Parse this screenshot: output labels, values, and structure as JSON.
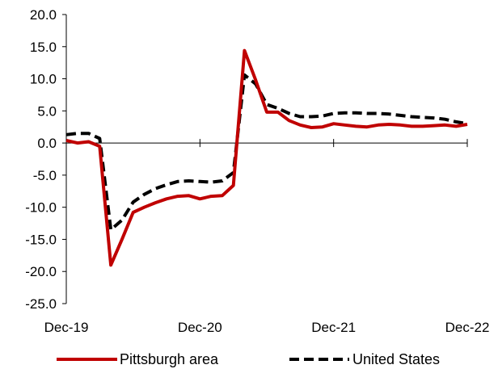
{
  "chart_data": {
    "type": "line",
    "x": [
      "Dec-19",
      "Jan-20",
      "Feb-20",
      "Mar-20",
      "Apr-20",
      "May-20",
      "Jun-20",
      "Jul-20",
      "Aug-20",
      "Sep-20",
      "Oct-20",
      "Nov-20",
      "Dec-20",
      "Jan-21",
      "Feb-21",
      "Mar-21",
      "Apr-21",
      "May-21",
      "Jun-21",
      "Jul-21",
      "Aug-21",
      "Sep-21",
      "Oct-21",
      "Nov-21",
      "Dec-21",
      "Jan-22",
      "Feb-22",
      "Mar-22",
      "Apr-22",
      "May-22",
      "Jun-22",
      "Jul-22",
      "Aug-22",
      "Sep-22",
      "Oct-22",
      "Nov-22",
      "Dec-22"
    ],
    "x_tick_labels": [
      "Dec-19",
      "Dec-20",
      "Dec-21",
      "Dec-22"
    ],
    "y_tick_labels": [
      "20.0",
      "15.0",
      "10.0",
      "5.0",
      "0.0",
      "-5.0",
      "-10.0",
      "-15.0",
      "-20.0",
      "-25.0"
    ],
    "ylim": [
      -25,
      20
    ],
    "y_ticks": [
      20,
      15,
      10,
      5,
      0,
      -5,
      -10,
      -15,
      -20,
      -25
    ],
    "grid": false,
    "legend_position": "bottom",
    "series": [
      {
        "name": "Pittsburgh area",
        "color": "#c00000",
        "style": "solid",
        "values": [
          0.4,
          0.0,
          0.2,
          -0.5,
          -19.0,
          -15.0,
          -10.8,
          -10.0,
          -9.3,
          -8.7,
          -8.3,
          -8.2,
          -8.7,
          -8.3,
          -8.2,
          -6.6,
          14.4,
          9.8,
          4.8,
          4.8,
          3.5,
          2.8,
          2.4,
          2.5,
          3.0,
          2.8,
          2.6,
          2.5,
          2.8,
          2.9,
          2.8,
          2.6,
          2.6,
          2.7,
          2.8,
          2.6,
          2.9
        ]
      },
      {
        "name": "United States",
        "color": "#000000",
        "style": "dashed",
        "values": [
          1.3,
          1.5,
          1.5,
          0.7,
          -13.5,
          -12.0,
          -9.2,
          -8.0,
          -7.1,
          -6.5,
          -6.0,
          -5.9,
          -6.0,
          -6.1,
          -5.9,
          -4.6,
          10.6,
          9.2,
          6.0,
          5.4,
          4.6,
          4.1,
          4.1,
          4.2,
          4.6,
          4.7,
          4.7,
          4.6,
          4.6,
          4.5,
          4.3,
          4.1,
          4.0,
          3.9,
          3.7,
          3.3,
          3.0
        ]
      }
    ]
  }
}
